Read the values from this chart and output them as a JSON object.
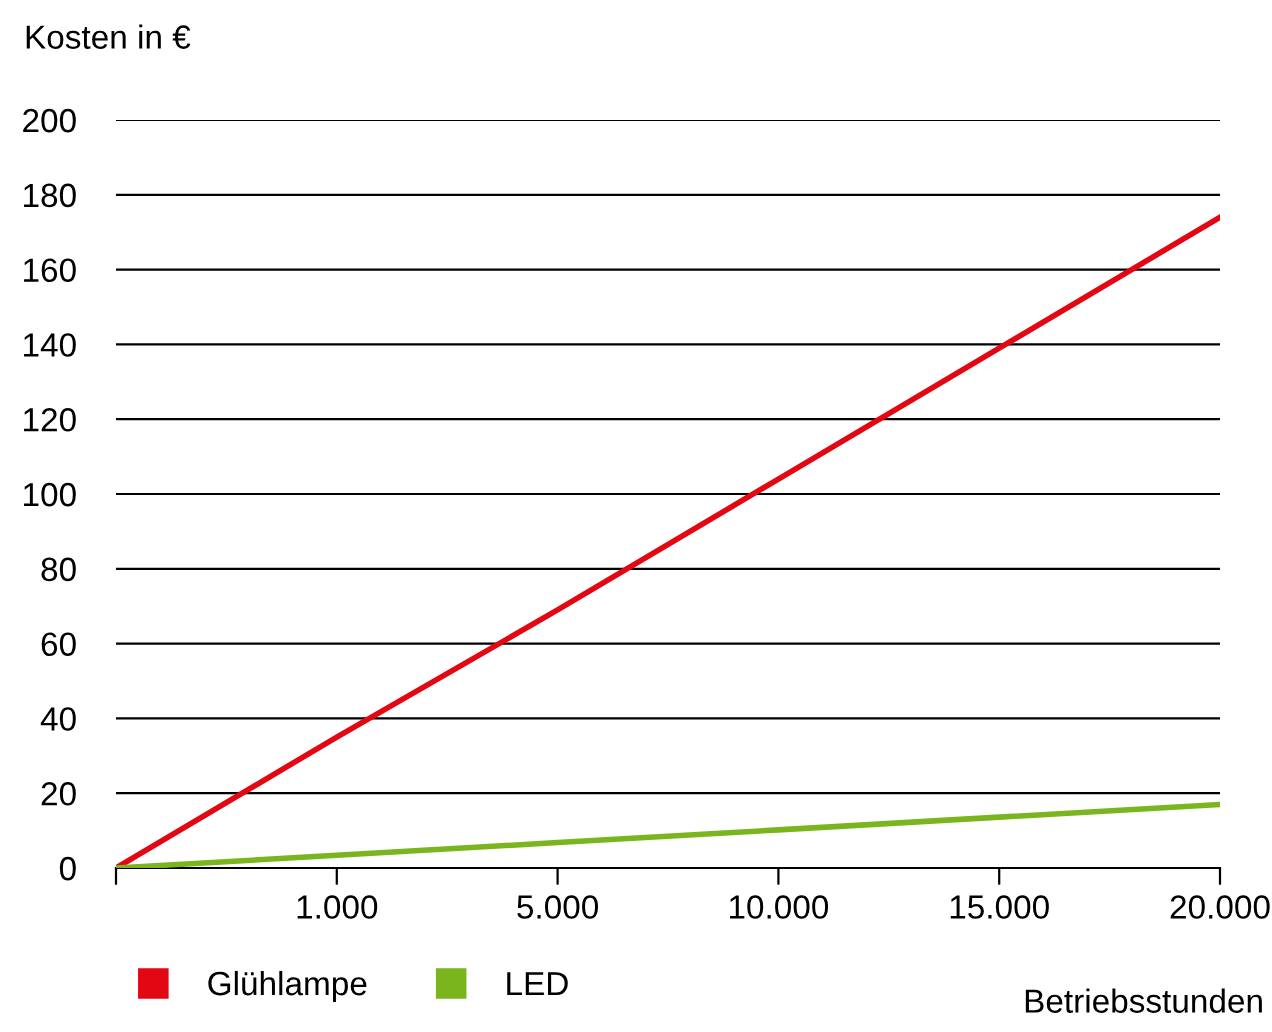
{
  "chart_data": {
    "type": "line",
    "ylabel": "Kosten in €",
    "xlabel": "Betriebsstunden",
    "categories": [
      null,
      "1.000",
      "5.000",
      "10.000",
      "15.000",
      "20.000"
    ],
    "series": [
      {
        "name": "Glühlampe",
        "color": "#e30613",
        "values": [
          0,
          35,
          69,
          104,
          139,
          174
        ]
      },
      {
        "name": "LED",
        "color": "#7ab51d",
        "values": [
          0,
          3.4,
          6.8,
          10.2,
          13.6,
          17
        ]
      }
    ],
    "ylim": [
      0,
      200
    ],
    "yticks": [
      0,
      20,
      40,
      60,
      80,
      100,
      120,
      140,
      160,
      180,
      200
    ],
    "grid": "y",
    "legend": "bottom left",
    "marker": "none",
    "line_style": "solid"
  }
}
